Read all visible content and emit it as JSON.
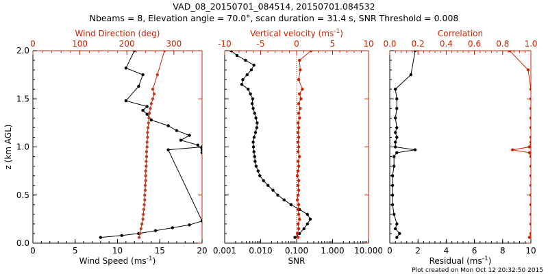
{
  "title": {
    "line1": "VAD_08_20150701_084514, 20150701.084532",
    "line2": "Nbeams = 8, Elevation angle = 70.0°, scan duration = 31.4 s, SNR Threshold = 0.008"
  },
  "footer": "Plot created on Mon Oct 12 20:32:50 2015",
  "colors": {
    "black": "#000000",
    "red": "#cc2200",
    "point_red": "#b5442a"
  },
  "chart_data": [
    {
      "type": "scatter",
      "name": "wind-profile",
      "ylabel": "z (km AGL)",
      "ylim": [
        0,
        2
      ],
      "yticks": [
        "0.0",
        "0.5",
        "1.0",
        "1.5",
        "2.0"
      ],
      "bottom_axis": {
        "label_main": "Wind Speed (ms",
        "label_sup": "-1",
        "label_end": ")",
        "lim": [
          0,
          20
        ],
        "ticks": [
          "0",
          "5",
          "10",
          "15",
          "20"
        ]
      },
      "top_axis": {
        "label": "Wind Direction (deg)",
        "lim": [
          0,
          360
        ],
        "ticks": [
          "0",
          "100",
          "200",
          "300"
        ]
      },
      "series": [
        {
          "axis": "bottom",
          "color": "#000000",
          "z": [
            0.06,
            0.08,
            0.1,
            0.13,
            0.16,
            0.19,
            0.23,
            0.97,
            1.0,
            0.94,
            0.97,
            1.02,
            1.07,
            1.12,
            1.17,
            1.22,
            1.28,
            1.34,
            1.38,
            1.42,
            1.48,
            1.63,
            1.75,
            1.82,
            2.0
          ],
          "x": [
            8,
            10.5,
            12.5,
            14.5,
            16.5,
            18.5,
            20,
            16,
            20,
            20,
            20,
            19.5,
            17.5,
            18.5,
            17,
            16,
            14,
            13.5,
            13,
            13.5,
            11,
            12.5,
            13,
            11,
            12
          ]
        },
        {
          "axis": "top",
          "color": "#b5442a",
          "z": [
            0.06,
            0.1,
            0.15,
            0.2,
            0.25,
            0.3,
            0.35,
            0.4,
            0.45,
            0.5,
            0.55,
            0.6,
            0.65,
            0.7,
            0.75,
            0.8,
            0.85,
            0.9,
            0.95,
            1.0,
            1.05,
            1.1,
            1.15,
            1.2,
            1.25,
            1.3,
            1.35,
            1.4,
            1.45,
            1.5,
            1.55,
            1.6,
            1.75,
            2.0
          ],
          "x": [
            226,
            228,
            230,
            232,
            234,
            235,
            236,
            237,
            238,
            238,
            239,
            239,
            240,
            240,
            240,
            241,
            241,
            242,
            242,
            243,
            243,
            244,
            244,
            245,
            246,
            247,
            248,
            250,
            252,
            255,
            258,
            255,
            265,
            280
          ]
        }
      ]
    },
    {
      "type": "line",
      "name": "snr-vertical-velocity",
      "ylim": [
        0,
        2
      ],
      "bottom_axis": {
        "label": "SNR",
        "scale": "log",
        "lim": [
          0.001,
          10
        ],
        "ticks": [
          "0.001",
          "0.010",
          "0.100",
          "1.000",
          "10.000"
        ]
      },
      "top_axis": {
        "label_main": "Vertical velocity (ms",
        "label_sup": "-1",
        "label_end": ")",
        "lim": [
          -10,
          10
        ],
        "ticks": [
          "-10",
          "-5",
          "0",
          "5",
          "10"
        ]
      },
      "series": [
        {
          "axis": "bottom",
          "color": "#000000",
          "z": [
            0.06,
            0.1,
            0.15,
            0.2,
            0.25,
            0.3,
            0.35,
            0.4,
            0.45,
            0.5,
            0.55,
            0.6,
            0.65,
            0.7,
            0.75,
            0.8,
            0.85,
            0.9,
            0.95,
            1.0,
            1.05,
            1.1,
            1.15,
            1.2,
            1.25,
            1.3,
            1.35,
            1.4,
            1.45,
            1.5,
            1.55,
            1.6,
            1.65,
            1.7,
            1.75,
            1.8,
            1.85,
            1.9,
            1.95,
            2.0
          ],
          "x": [
            0.09,
            0.12,
            0.16,
            0.2,
            0.24,
            0.2,
            0.12,
            0.07,
            0.045,
            0.03,
            0.022,
            0.016,
            0.012,
            0.0095,
            0.0085,
            0.0075,
            0.007,
            0.0068,
            0.0065,
            0.0063,
            0.0062,
            0.0066,
            0.0072,
            0.0078,
            0.008,
            0.0074,
            0.0068,
            0.0062,
            0.0058,
            0.006,
            0.0052,
            0.0045,
            0.003,
            0.0032,
            0.0042,
            0.0055,
            0.0065,
            0.0038,
            0.0022,
            0.0015
          ]
        },
        {
          "axis": "top",
          "color": "#cc2200",
          "z": [
            0.06,
            0.1,
            0.15,
            0.2,
            0.25,
            0.3,
            0.35,
            0.4,
            0.45,
            0.5,
            0.55,
            0.6,
            0.65,
            0.7,
            0.75,
            0.8,
            0.85,
            0.9,
            0.95,
            1.0,
            1.05,
            1.1,
            1.15,
            1.2,
            1.25,
            1.3,
            1.35,
            1.4,
            1.45,
            1.5,
            1.55,
            1.6,
            1.7,
            1.8,
            1.9,
            2.0
          ],
          "x": [
            0.2,
            0.1,
            0.3,
            0.2,
            0.4,
            0.3,
            0.2,
            0.3,
            0.1,
            0.2,
            0.3,
            0.2,
            0.3,
            0.1,
            0.2,
            0.3,
            0.2,
            0.4,
            0.2,
            0.3,
            0.2,
            0.3,
            0.2,
            0.3,
            0.2,
            0.4,
            0.3,
            0.5,
            0.3,
            0.6,
            0.4,
            0.8,
            0.3,
            0.5,
            0.4,
            2.0
          ]
        }
      ]
    },
    {
      "type": "line",
      "name": "residual-correlation",
      "ylim": [
        0,
        2
      ],
      "bottom_axis": {
        "label_main": "Residual (ms",
        "label_sup": "-1",
        "label_end": ")",
        "lim": [
          0,
          10
        ],
        "ticks": [
          "0",
          "2",
          "4",
          "6",
          "8",
          "10"
        ]
      },
      "top_axis": {
        "label": "Correlation",
        "lim": [
          0,
          1
        ],
        "ticks": [
          "0.0",
          "0.2",
          "0.4",
          "0.6",
          "0.8",
          "1.0"
        ]
      },
      "series": [
        {
          "axis": "bottom",
          "color": "#000000",
          "z": [
            0.06,
            0.1,
            0.15,
            0.2,
            0.3,
            0.4,
            0.5,
            0.6,
            0.7,
            0.8,
            0.9,
            0.94,
            0.97,
            1.0,
            1.05,
            1.1,
            1.15,
            1.2,
            1.3,
            1.4,
            1.5,
            1.6,
            1.75,
            2.0
          ],
          "x": [
            0.5,
            0.7,
            0.4,
            0.5,
            0.3,
            0.2,
            0.2,
            0.2,
            0.2,
            0.3,
            0.3,
            0.5,
            1.8,
            0.4,
            0.4,
            0.5,
            0.4,
            0.5,
            0.4,
            0.5,
            0.5,
            0.4,
            1.5,
            1.8
          ]
        },
        {
          "axis": "top",
          "color": "#cc2200",
          "z": [
            0.06,
            0.1,
            0.2,
            0.3,
            0.4,
            0.5,
            0.6,
            0.7,
            0.8,
            0.9,
            0.94,
            0.97,
            1.0,
            1.05,
            1.1,
            1.2,
            1.3,
            1.4,
            1.5,
            1.6,
            1.8,
            2.0
          ],
          "x": [
            0.99,
            1.0,
            1.0,
            1.0,
            1.0,
            1.0,
            1.0,
            1.0,
            1.0,
            1.0,
            0.99,
            0.87,
            0.99,
            1.0,
            1.0,
            1.0,
            1.0,
            1.0,
            1.0,
            1.0,
            0.98,
            0.85
          ]
        }
      ]
    }
  ]
}
